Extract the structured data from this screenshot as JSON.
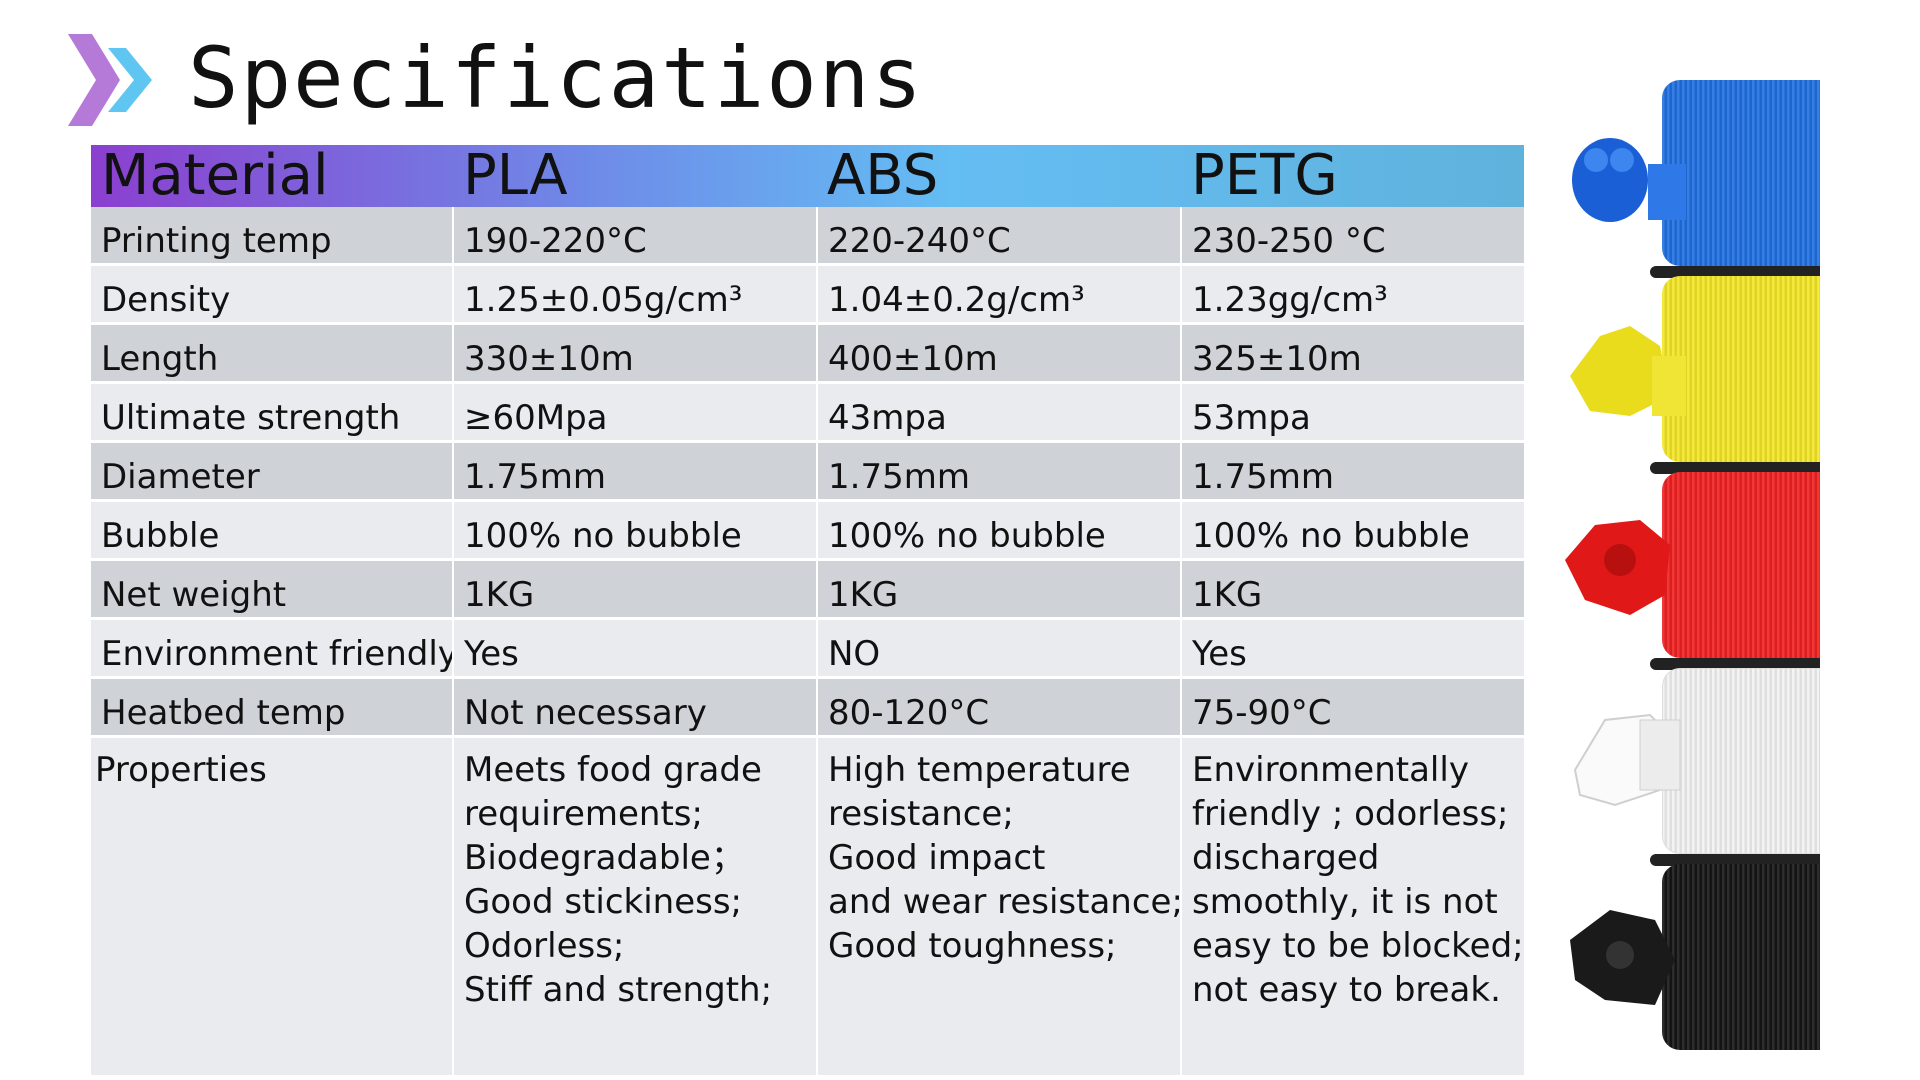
{
  "title": "Specifications",
  "colors": {
    "chevron_left": "#b57ad8",
    "chevron_right": "#5fc6f2",
    "header_gradient": [
      "#8b3fcf",
      "#6e8be8",
      "#64bdf3",
      "#5fb2dc"
    ],
    "row_dark": "#cfd3d8",
    "row_light": "#e9ebee",
    "spools": [
      "#1f6fe0",
      "#f3e626",
      "#ef2020",
      "#f2f2f2",
      "#151515"
    ]
  },
  "table": {
    "headers": [
      "Material",
      "PLA",
      "ABS",
      "PETG"
    ],
    "rows": [
      {
        "label": "Printing temp",
        "values": [
          "190-220°C",
          "220-240°C",
          "230-250 °C"
        ]
      },
      {
        "label": "Density",
        "values": [
          "1.25±0.05g/cm³",
          "1.04±0.2g/cm³",
          "1.23gg/cm³"
        ]
      },
      {
        "label": "Length",
        "values": [
          "330±10m",
          "400±10m",
          "325±10m"
        ]
      },
      {
        "label": "Ultimate strength",
        "values": [
          "≥60Mpa",
          "43mpa",
          "53mpa"
        ]
      },
      {
        "label": "Diameter",
        "values": [
          "1.75mm",
          "1.75mm",
          "1.75mm"
        ]
      },
      {
        "label": "Bubble",
        "values": [
          "100% no bubble",
          "100% no bubble",
          "100% no bubble"
        ]
      },
      {
        "label": "Net weight",
        "values": [
          "1KG",
          "1KG",
          "1KG"
        ]
      },
      {
        "label": "Environment friendly",
        "values": [
          "Yes",
          "NO",
          "Yes"
        ]
      },
      {
        "label": "Heatbed temp",
        "values": [
          "Not necessary",
          "80-120°C",
          "75-90°C"
        ]
      }
    ],
    "properties": {
      "label": "Properties",
      "pla": [
        "Meets food grade",
        "requirements;",
        "Biodegradable；",
        "Good stickiness;",
        "Odorless;",
        "Stiff and strength;"
      ],
      "abs": [
        "High temperature",
        "resistance;",
        "Good impact",
        "and wear resistance;",
        "Good toughness;"
      ],
      "petg": [
        "Environmentally",
        "friendly ; odorless;",
        "discharged",
        "smoothly,  it is not",
        "easy to be blocked;",
        "not easy to break."
      ]
    }
  }
}
